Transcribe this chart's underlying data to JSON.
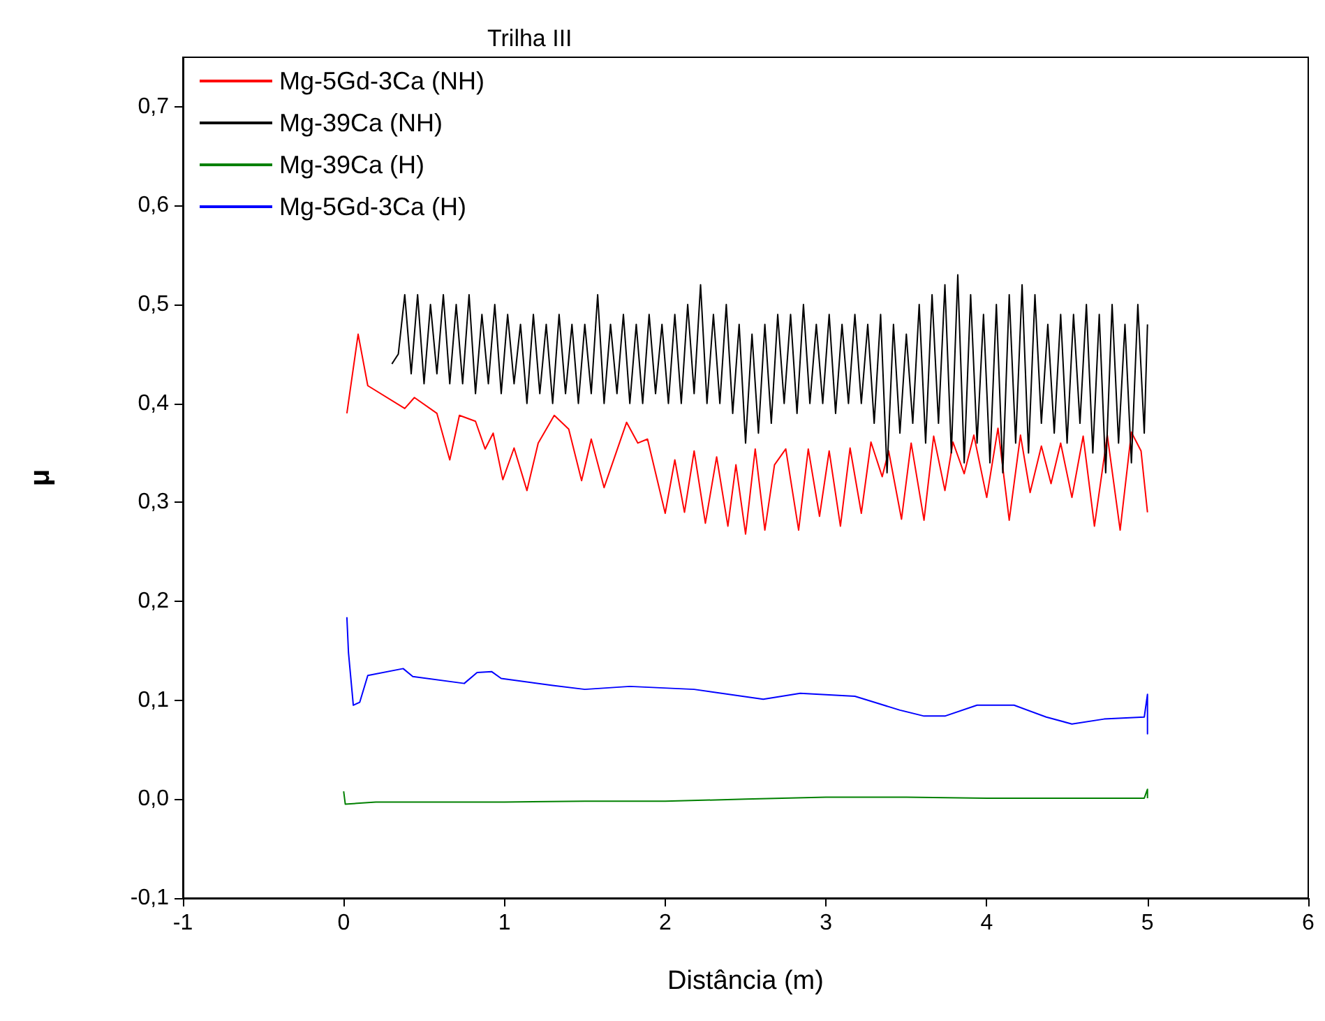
{
  "chart_data": {
    "type": "line",
    "title": "Trilha III",
    "xlabel": "Distância (m)",
    "ylabel": "μ",
    "xlim": [
      -1,
      6
    ],
    "xticks": [
      -1,
      0,
      1,
      2,
      3,
      4,
      5,
      6
    ],
    "ylim": [
      -0.1,
      0.75
    ],
    "yticks": [
      {
        "value": -0.1,
        "label": "-0,1"
      },
      {
        "value": 0,
        "label": "0,0"
      },
      {
        "value": 0.1,
        "label": "0,1"
      },
      {
        "value": 0.2,
        "label": "0,2"
      },
      {
        "value": 0.3,
        "label": "0,3"
      },
      {
        "value": 0.4,
        "label": "0,4"
      },
      {
        "value": 0.5,
        "label": "0,5"
      },
      {
        "value": 0.6,
        "label": "0,6"
      },
      {
        "value": 0.7,
        "label": "0,7"
      }
    ],
    "grid": false,
    "legend": "top left",
    "marker": "none",
    "line_style": "solid",
    "series": [
      {
        "name": "Mg-5Gd-3Ca (NH)",
        "color": "#ff0000",
        "x": [
          0.02,
          0.09,
          0.15,
          0.38,
          0.44,
          0.58,
          0.66,
          0.72,
          0.82,
          0.88,
          0.93,
          0.99,
          1.06,
          1.14,
          1.21,
          1.31,
          1.4,
          1.48,
          1.54,
          1.62,
          1.76,
          1.83,
          1.89,
          2.0,
          2.06,
          2.12,
          2.18,
          2.25,
          2.32,
          2.39,
          2.44,
          2.5,
          2.56,
          2.62,
          2.68,
          2.75,
          2.83,
          2.89,
          2.96,
          3.02,
          3.09,
          3.15,
          3.22,
          3.28,
          3.35,
          3.39,
          3.47,
          3.53,
          3.61,
          3.67,
          3.74,
          3.79,
          3.86,
          3.92,
          4.0,
          4.07,
          4.14,
          4.21,
          4.27,
          4.34,
          4.4,
          4.46,
          4.53,
          4.6,
          4.67,
          4.75,
          4.83,
          4.9,
          4.96,
          5.0
        ],
        "values": [
          0.39,
          0.47,
          0.418,
          0.395,
          0.406,
          0.39,
          0.343,
          0.388,
          0.382,
          0.354,
          0.37,
          0.323,
          0.355,
          0.312,
          0.36,
          0.388,
          0.374,
          0.322,
          0.364,
          0.315,
          0.381,
          0.36,
          0.364,
          0.289,
          0.343,
          0.29,
          0.352,
          0.279,
          0.346,
          0.276,
          0.338,
          0.268,
          0.354,
          0.272,
          0.338,
          0.354,
          0.272,
          0.354,
          0.286,
          0.352,
          0.276,
          0.355,
          0.289,
          0.361,
          0.326,
          0.352,
          0.283,
          0.36,
          0.282,
          0.367,
          0.312,
          0.361,
          0.329,
          0.368,
          0.305,
          0.375,
          0.282,
          0.368,
          0.31,
          0.357,
          0.319,
          0.36,
          0.305,
          0.367,
          0.276,
          0.368,
          0.272,
          0.371,
          0.352,
          0.29
        ]
      },
      {
        "name": "Mg-39Ca (NH)",
        "color": "#000000",
        "x": [
          0.3,
          0.34,
          0.38,
          0.42,
          0.46,
          0.5,
          0.54,
          0.58,
          0.62,
          0.66,
          0.7,
          0.74,
          0.78,
          0.82,
          0.86,
          0.9,
          0.94,
          0.98,
          1.02,
          1.06,
          1.1,
          1.14,
          1.18,
          1.22,
          1.26,
          1.3,
          1.34,
          1.38,
          1.42,
          1.46,
          1.5,
          1.54,
          1.58,
          1.62,
          1.66,
          1.7,
          1.74,
          1.78,
          1.82,
          1.86,
          1.9,
          1.94,
          1.98,
          2.02,
          2.06,
          2.1,
          2.14,
          2.18,
          2.22,
          2.26,
          2.3,
          2.34,
          2.38,
          2.42,
          2.46,
          2.5,
          2.54,
          2.58,
          2.62,
          2.66,
          2.7,
          2.74,
          2.78,
          2.82,
          2.86,
          2.9,
          2.94,
          2.98,
          3.02,
          3.06,
          3.1,
          3.14,
          3.18,
          3.22,
          3.26,
          3.3,
          3.34,
          3.38,
          3.42,
          3.46,
          3.5,
          3.54,
          3.58,
          3.62,
          3.66,
          3.7,
          3.74,
          3.78,
          3.82,
          3.86,
          3.9,
          3.94,
          3.98,
          4.02,
          4.06,
          4.1,
          4.14,
          4.18,
          4.22,
          4.26,
          4.3,
          4.34,
          4.38,
          4.42,
          4.46,
          4.5,
          4.54,
          4.58,
          4.62,
          4.66,
          4.7,
          4.74,
          4.78,
          4.82,
          4.86,
          4.9,
          4.94,
          4.98,
          5.0
        ],
        "values": [
          0.44,
          0.45,
          0.51,
          0.43,
          0.51,
          0.42,
          0.5,
          0.43,
          0.51,
          0.42,
          0.5,
          0.42,
          0.51,
          0.41,
          0.49,
          0.42,
          0.5,
          0.41,
          0.49,
          0.42,
          0.48,
          0.4,
          0.49,
          0.41,
          0.48,
          0.4,
          0.49,
          0.41,
          0.48,
          0.4,
          0.48,
          0.41,
          0.51,
          0.4,
          0.48,
          0.41,
          0.49,
          0.4,
          0.48,
          0.4,
          0.49,
          0.41,
          0.48,
          0.4,
          0.49,
          0.4,
          0.5,
          0.41,
          0.52,
          0.4,
          0.49,
          0.4,
          0.5,
          0.39,
          0.48,
          0.36,
          0.47,
          0.37,
          0.48,
          0.38,
          0.49,
          0.4,
          0.49,
          0.39,
          0.5,
          0.4,
          0.48,
          0.4,
          0.49,
          0.39,
          0.48,
          0.4,
          0.49,
          0.4,
          0.48,
          0.38,
          0.49,
          0.33,
          0.48,
          0.37,
          0.47,
          0.38,
          0.5,
          0.36,
          0.51,
          0.38,
          0.52,
          0.35,
          0.53,
          0.34,
          0.51,
          0.36,
          0.49,
          0.34,
          0.5,
          0.33,
          0.51,
          0.36,
          0.52,
          0.35,
          0.51,
          0.38,
          0.48,
          0.37,
          0.49,
          0.36,
          0.49,
          0.38,
          0.5,
          0.35,
          0.49,
          0.33,
          0.5,
          0.36,
          0.48,
          0.34,
          0.5,
          0.37,
          0.48
        ]
      },
      {
        "name": "Mg-39Ca (H)",
        "color": "#008000",
        "x": [
          0,
          0.01,
          0.2,
          1,
          1.5,
          2,
          2.5,
          3,
          3.5,
          4,
          4.5,
          4.98,
          5,
          5
        ],
        "values": [
          0.008,
          -0.005,
          -0.003,
          -0.003,
          -0.002,
          -0.002,
          0,
          0.002,
          0.002,
          0.001,
          0.001,
          0.001,
          0.01,
          0.001
        ]
      },
      {
        "name": "Mg-5Gd-3Ca (H)",
        "color": "#0000ff",
        "x": [
          0.02,
          0.03,
          0.06,
          0.1,
          0.15,
          0.37,
          0.43,
          0.75,
          0.83,
          0.92,
          0.98,
          1.3,
          1.5,
          1.78,
          2.18,
          2.61,
          2.84,
          3.18,
          3.3,
          3.46,
          3.61,
          3.74,
          3.94,
          4.17,
          4.37,
          4.53,
          4.73,
          4.98,
          5,
          5,
          5
        ],
        "values": [
          0.184,
          0.148,
          0.095,
          0.098,
          0.125,
          0.132,
          0.124,
          0.117,
          0.128,
          0.129,
          0.122,
          0.115,
          0.111,
          0.114,
          0.111,
          0.101,
          0.107,
          0.104,
          0.098,
          0.09,
          0.084,
          0.084,
          0.095,
          0.095,
          0.083,
          0.076,
          0.081,
          0.083,
          0.106,
          0.066,
          0.085
        ]
      }
    ]
  }
}
